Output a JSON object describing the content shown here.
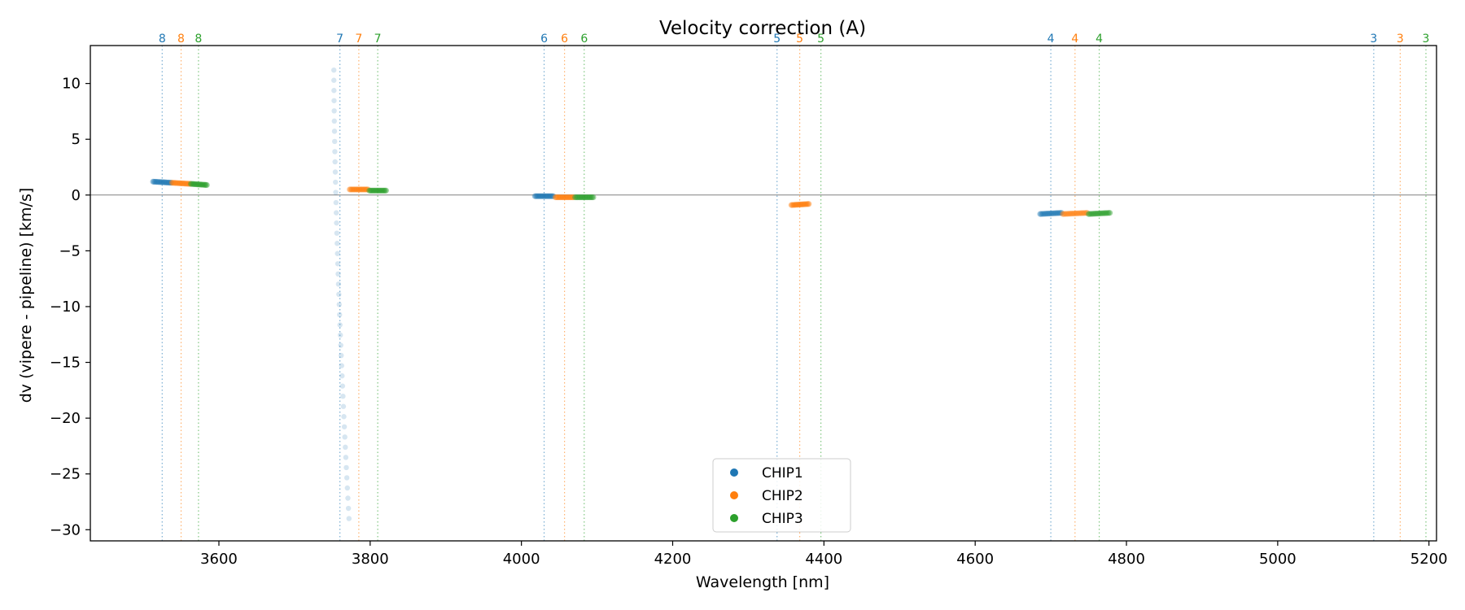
{
  "chart_data": {
    "type": "scatter",
    "title": "Velocity correction (A)",
    "xlabel": "Wavelength [nm]",
    "ylabel": "dv (vipere - pipeline) [km/s]",
    "xlim": [
      3430,
      5210
    ],
    "ylim": [
      -31,
      13.4
    ],
    "xticks": [
      3600,
      3800,
      4000,
      4200,
      4400,
      4600,
      4800,
      5000,
      5200
    ],
    "yticks": [
      10,
      5,
      0,
      -5,
      -10,
      -15,
      -20,
      -25,
      -30
    ],
    "reference_line_y": 0,
    "colors": {
      "CHIP1": "#1f77b4",
      "CHIP2": "#ff7f0e",
      "CHIP3": "#2ca02c",
      "zero_line": "#808080"
    },
    "legend": {
      "position": "lower-center",
      "entries": [
        "CHIP1",
        "CHIP2",
        "CHIP3"
      ]
    },
    "order_markers": [
      {
        "order": "8",
        "chip": "CHIP1",
        "x": 3525
      },
      {
        "order": "8",
        "chip": "CHIP2",
        "x": 3550
      },
      {
        "order": "8",
        "chip": "CHIP3",
        "x": 3573
      },
      {
        "order": "7",
        "chip": "CHIP1",
        "x": 3760
      },
      {
        "order": "7",
        "chip": "CHIP2",
        "x": 3785
      },
      {
        "order": "7",
        "chip": "CHIP3",
        "x": 3810
      },
      {
        "order": "6",
        "chip": "CHIP1",
        "x": 4030
      },
      {
        "order": "6",
        "chip": "CHIP2",
        "x": 4057
      },
      {
        "order": "6",
        "chip": "CHIP3",
        "x": 4083
      },
      {
        "order": "5",
        "chip": "CHIP1",
        "x": 4338
      },
      {
        "order": "5",
        "chip": "CHIP2",
        "x": 4368
      },
      {
        "order": "5",
        "chip": "CHIP3",
        "x": 4396
      },
      {
        "order": "4",
        "chip": "CHIP1",
        "x": 4700
      },
      {
        "order": "4",
        "chip": "CHIP2",
        "x": 4732
      },
      {
        "order": "4",
        "chip": "CHIP3",
        "x": 4764
      },
      {
        "order": "3",
        "chip": "CHIP1",
        "x": 5127
      },
      {
        "order": "3",
        "chip": "CHIP2",
        "x": 5162
      },
      {
        "order": "3",
        "chip": "CHIP3",
        "x": 5196
      }
    ],
    "series": [
      {
        "name": "CHIP1",
        "segments": [
          {
            "x0": 3513,
            "x1": 3537,
            "y0": 1.2,
            "y1": 1.1
          },
          {
            "x0": 4018,
            "x1": 4042,
            "y0": -0.1,
            "y1": -0.1
          },
          {
            "x0": 4686,
            "x1": 4714,
            "y0": -1.7,
            "y1": -1.6
          }
        ]
      },
      {
        "name": "CHIP2",
        "segments": [
          {
            "x0": 3538,
            "x1": 3562,
            "y0": 1.1,
            "y1": 1.0
          },
          {
            "x0": 3773,
            "x1": 3797,
            "y0": 0.5,
            "y1": 0.5
          },
          {
            "x0": 4045,
            "x1": 4069,
            "y0": -0.2,
            "y1": -0.2
          },
          {
            "x0": 4357,
            "x1": 4380,
            "y0": -0.9,
            "y1": -0.8
          },
          {
            "x0": 4716,
            "x1": 4748,
            "y0": -1.7,
            "y1": -1.6
          }
        ]
      },
      {
        "name": "CHIP3",
        "segments": [
          {
            "x0": 3563,
            "x1": 3584,
            "y0": 1.0,
            "y1": 0.9
          },
          {
            "x0": 3799,
            "x1": 3821,
            "y0": 0.4,
            "y1": 0.4
          },
          {
            "x0": 4071,
            "x1": 4095,
            "y0": -0.2,
            "y1": -0.2
          },
          {
            "x0": 4750,
            "x1": 4778,
            "y0": -1.7,
            "y1": -1.6
          }
        ]
      }
    ],
    "outlier_series": {
      "name": "CHIP1 (faded)",
      "x_start": 3752,
      "x_end": 3772,
      "y_start": 11.2,
      "y_end": -29.0,
      "n_points": 45
    }
  }
}
